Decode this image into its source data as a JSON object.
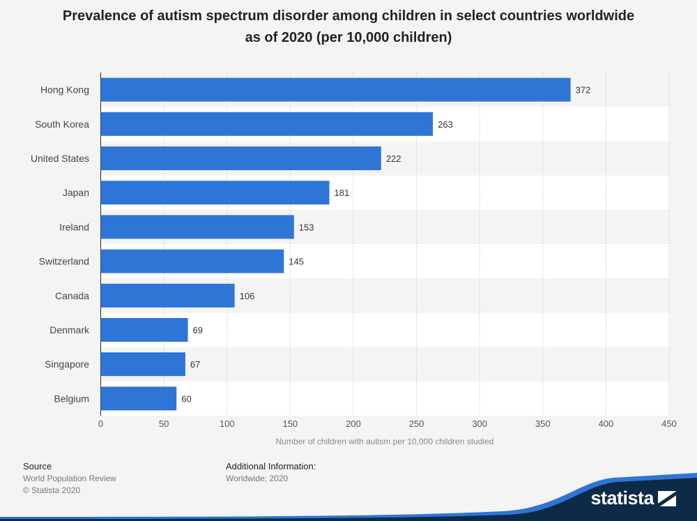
{
  "chart_data": {
    "type": "bar",
    "orientation": "horizontal",
    "title_lines": [
      "Prevalence of autism spectrum disorder among children in select countries worldwide",
      "as of 2020 (per 10,000 children)"
    ],
    "categories": [
      "Hong Kong",
      "South Korea",
      "United States",
      "Japan",
      "Ireland",
      "Switzerland",
      "Canada",
      "Denmark",
      "Singapore",
      "Belgium"
    ],
    "values": [
      372,
      263,
      222,
      181,
      153,
      145,
      106,
      69,
      67,
      60
    ],
    "value_labels": [
      "372",
      "263",
      "222",
      "181",
      "153",
      "145",
      "106",
      "69",
      "67",
      "60"
    ],
    "xlabel": "Number of children with autism per 10,000 children studied",
    "ylabel": "",
    "xlim": [
      0,
      450
    ],
    "xticks": [
      0,
      50,
      100,
      150,
      200,
      250,
      300,
      350,
      400,
      450
    ],
    "xtick_labels": [
      "0",
      "50",
      "100",
      "150",
      "200",
      "250",
      "300",
      "350",
      "400",
      "450"
    ],
    "grid": true,
    "bar_color": "#2e75d6"
  },
  "footer": {
    "source_heading": "Source",
    "source_lines": [
      "World Population Review",
      "© Statista 2020"
    ],
    "info_heading": "Additional Information:",
    "info_lines": [
      "Worldwide; 2020"
    ]
  },
  "brand": {
    "name": "statista",
    "icon": "statista-logo-icon",
    "color": "#0d2a47",
    "accent": "#2e75d6"
  }
}
